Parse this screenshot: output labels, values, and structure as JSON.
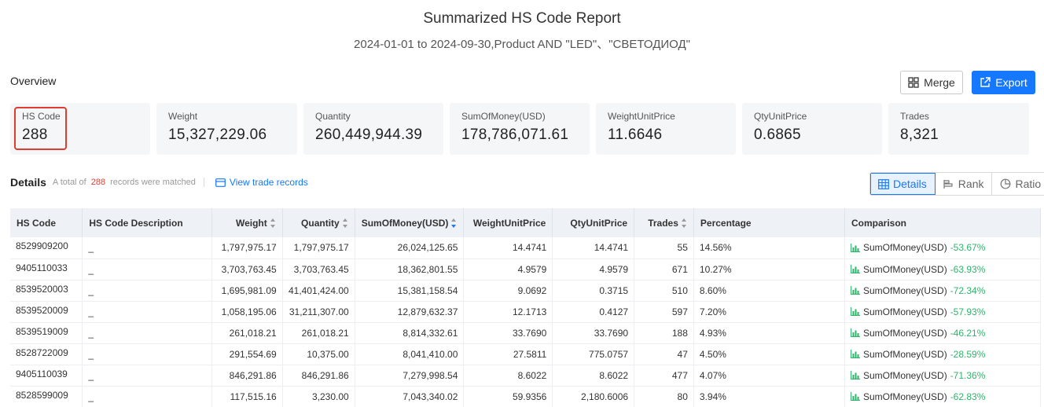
{
  "report": {
    "title": "Summarized HS Code Report",
    "subtitle": "2024-01-01 to 2024-09-30,Product AND \"LED\"、\"СВЕТОДИОД\""
  },
  "overview": {
    "label": "Overview",
    "merge_label": "Merge",
    "export_label": "Export",
    "cards": [
      {
        "label": "HS Code",
        "value": "288"
      },
      {
        "label": "Weight",
        "value": "15,327,229.06"
      },
      {
        "label": "Quantity",
        "value": "260,449,944.39"
      },
      {
        "label": "SumOfMoney(USD)",
        "value": "178,786,071.61"
      },
      {
        "label": "WeightUnitPrice",
        "value": "11.6646"
      },
      {
        "label": "QtyUnitPrice",
        "value": "0.6865"
      },
      {
        "label": "Trades",
        "value": "8,321"
      }
    ]
  },
  "details": {
    "label": "Details",
    "total_prefix": "A total of",
    "total_count": "288",
    "total_suffix": "records were matched",
    "view_link": "View trade records",
    "views": [
      "Details",
      "Rank",
      "Ratio"
    ]
  },
  "table": {
    "headers": [
      "HS Code",
      "HS Code Description",
      "Weight",
      "Quantity",
      "SumOfMoney(USD)",
      "WeightUnitPrice",
      "QtyUnitPrice",
      "Trades",
      "Percentage",
      "Comparison"
    ],
    "comparison_label": "SumOfMoney(USD)",
    "rows": [
      {
        "code": "8529909200",
        "desc": "_",
        "weight": "1,797,975.17",
        "qty": "1,797,975.17",
        "money": "26,024,125.65",
        "wup": "14.4741",
        "qup": "14.4741",
        "trades": "55",
        "pct": "14.56%",
        "cmp": "-53.67%"
      },
      {
        "code": "9405110033",
        "desc": "_",
        "weight": "3,703,763.45",
        "qty": "3,703,763.45",
        "money": "18,362,801.55",
        "wup": "4.9579",
        "qup": "4.9579",
        "trades": "671",
        "pct": "10.27%",
        "cmp": "-63.93%"
      },
      {
        "code": "8539520003",
        "desc": "_",
        "weight": "1,695,981.09",
        "qty": "41,401,424.00",
        "money": "15,381,158.54",
        "wup": "9.0692",
        "qup": "0.3715",
        "trades": "510",
        "pct": "8.60%",
        "cmp": "-72.34%"
      },
      {
        "code": "8539520009",
        "desc": "_",
        "weight": "1,058,195.06",
        "qty": "31,211,307.00",
        "money": "12,879,632.37",
        "wup": "12.1713",
        "qup": "0.4127",
        "trades": "597",
        "pct": "7.20%",
        "cmp": "-57.93%"
      },
      {
        "code": "8539519009",
        "desc": "_",
        "weight": "261,018.21",
        "qty": "261,018.21",
        "money": "8,814,332.61",
        "wup": "33.7690",
        "qup": "33.7690",
        "trades": "188",
        "pct": "4.93%",
        "cmp": "-46.21%"
      },
      {
        "code": "8528722009",
        "desc": "_",
        "weight": "291,554.69",
        "qty": "10,375.00",
        "money": "8,041,410.00",
        "wup": "27.5811",
        "qup": "775.0757",
        "trades": "47",
        "pct": "4.50%",
        "cmp": "-28.59%"
      },
      {
        "code": "9405110039",
        "desc": "_",
        "weight": "846,291.86",
        "qty": "846,291.86",
        "money": "7,279,998.54",
        "wup": "8.6022",
        "qup": "8.6022",
        "trades": "477",
        "pct": "4.07%",
        "cmp": "-71.36%"
      },
      {
        "code": "8528599009",
        "desc": "_",
        "weight": "117,515.16",
        "qty": "3,230.00",
        "money": "7,043,340.02",
        "wup": "59.9356",
        "qup": "2,180.6006",
        "trades": "80",
        "pct": "3.94%",
        "cmp": "-62.83%"
      }
    ]
  },
  "colors": {
    "accent": "#1677ff",
    "highlight": "#e03c2f",
    "positive": "#2fb36b"
  },
  "icons": {
    "merge": "merge-grid-icon",
    "export": "external-link-icon",
    "view": "card-icon",
    "details": "table-icon",
    "rank": "rank-bar-icon",
    "ratio": "pie-icon",
    "comparison": "bar-chart-icon"
  }
}
